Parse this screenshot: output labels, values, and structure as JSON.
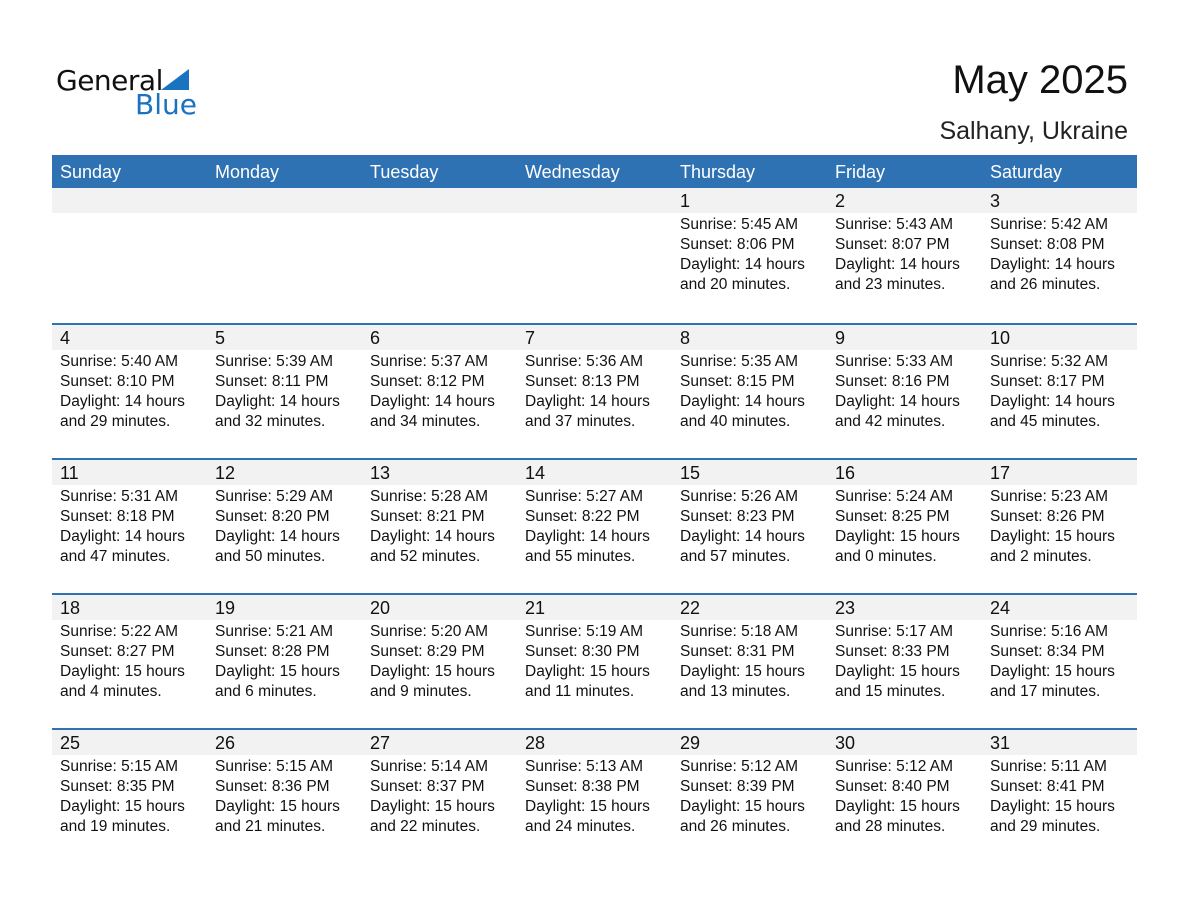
{
  "logo": {
    "line1": "General",
    "line2": "Blue"
  },
  "title": "May 2025",
  "location": "Salhany, Ukraine",
  "colors": {
    "header": "#2e72b3",
    "date_bar": "#f2f2f2",
    "logo_blue": "#1a73c0"
  },
  "days": [
    "Sunday",
    "Monday",
    "Tuesday",
    "Wednesday",
    "Thursday",
    "Friday",
    "Saturday"
  ],
  "weeks": [
    [
      null,
      null,
      null,
      null,
      {
        "day": "1",
        "sunrise": "Sunrise: 5:45 AM",
        "sunset": "Sunset: 8:06 PM",
        "daylight": "Daylight: 14 hours",
        "minutes": "and 20 minutes."
      },
      {
        "day": "2",
        "sunrise": "Sunrise: 5:43 AM",
        "sunset": "Sunset: 8:07 PM",
        "daylight": "Daylight: 14 hours",
        "minutes": "and 23 minutes."
      },
      {
        "day": "3",
        "sunrise": "Sunrise: 5:42 AM",
        "sunset": "Sunset: 8:08 PM",
        "daylight": "Daylight: 14 hours",
        "minutes": "and 26 minutes."
      }
    ],
    [
      {
        "day": "4",
        "sunrise": "Sunrise: 5:40 AM",
        "sunset": "Sunset: 8:10 PM",
        "daylight": "Daylight: 14 hours",
        "minutes": "and 29 minutes."
      },
      {
        "day": "5",
        "sunrise": "Sunrise: 5:39 AM",
        "sunset": "Sunset: 8:11 PM",
        "daylight": "Daylight: 14 hours",
        "minutes": "and 32 minutes."
      },
      {
        "day": "6",
        "sunrise": "Sunrise: 5:37 AM",
        "sunset": "Sunset: 8:12 PM",
        "daylight": "Daylight: 14 hours",
        "minutes": "and 34 minutes."
      },
      {
        "day": "7",
        "sunrise": "Sunrise: 5:36 AM",
        "sunset": "Sunset: 8:13 PM",
        "daylight": "Daylight: 14 hours",
        "minutes": "and 37 minutes."
      },
      {
        "day": "8",
        "sunrise": "Sunrise: 5:35 AM",
        "sunset": "Sunset: 8:15 PM",
        "daylight": "Daylight: 14 hours",
        "minutes": "and 40 minutes."
      },
      {
        "day": "9",
        "sunrise": "Sunrise: 5:33 AM",
        "sunset": "Sunset: 8:16 PM",
        "daylight": "Daylight: 14 hours",
        "minutes": "and 42 minutes."
      },
      {
        "day": "10",
        "sunrise": "Sunrise: 5:32 AM",
        "sunset": "Sunset: 8:17 PM",
        "daylight": "Daylight: 14 hours",
        "minutes": "and 45 minutes."
      }
    ],
    [
      {
        "day": "11",
        "sunrise": "Sunrise: 5:31 AM",
        "sunset": "Sunset: 8:18 PM",
        "daylight": "Daylight: 14 hours",
        "minutes": "and 47 minutes."
      },
      {
        "day": "12",
        "sunrise": "Sunrise: 5:29 AM",
        "sunset": "Sunset: 8:20 PM",
        "daylight": "Daylight: 14 hours",
        "minutes": "and 50 minutes."
      },
      {
        "day": "13",
        "sunrise": "Sunrise: 5:28 AM",
        "sunset": "Sunset: 8:21 PM",
        "daylight": "Daylight: 14 hours",
        "minutes": "and 52 minutes."
      },
      {
        "day": "14",
        "sunrise": "Sunrise: 5:27 AM",
        "sunset": "Sunset: 8:22 PM",
        "daylight": "Daylight: 14 hours",
        "minutes": "and 55 minutes."
      },
      {
        "day": "15",
        "sunrise": "Sunrise: 5:26 AM",
        "sunset": "Sunset: 8:23 PM",
        "daylight": "Daylight: 14 hours",
        "minutes": "and 57 minutes."
      },
      {
        "day": "16",
        "sunrise": "Sunrise: 5:24 AM",
        "sunset": "Sunset: 8:25 PM",
        "daylight": "Daylight: 15 hours",
        "minutes": "and 0 minutes."
      },
      {
        "day": "17",
        "sunrise": "Sunrise: 5:23 AM",
        "sunset": "Sunset: 8:26 PM",
        "daylight": "Daylight: 15 hours",
        "minutes": "and 2 minutes."
      }
    ],
    [
      {
        "day": "18",
        "sunrise": "Sunrise: 5:22 AM",
        "sunset": "Sunset: 8:27 PM",
        "daylight": "Daylight: 15 hours",
        "minutes": "and 4 minutes."
      },
      {
        "day": "19",
        "sunrise": "Sunrise: 5:21 AM",
        "sunset": "Sunset: 8:28 PM",
        "daylight": "Daylight: 15 hours",
        "minutes": "and 6 minutes."
      },
      {
        "day": "20",
        "sunrise": "Sunrise: 5:20 AM",
        "sunset": "Sunset: 8:29 PM",
        "daylight": "Daylight: 15 hours",
        "minutes": "and 9 minutes."
      },
      {
        "day": "21",
        "sunrise": "Sunrise: 5:19 AM",
        "sunset": "Sunset: 8:30 PM",
        "daylight": "Daylight: 15 hours",
        "minutes": "and 11 minutes."
      },
      {
        "day": "22",
        "sunrise": "Sunrise: 5:18 AM",
        "sunset": "Sunset: 8:31 PM",
        "daylight": "Daylight: 15 hours",
        "minutes": "and 13 minutes."
      },
      {
        "day": "23",
        "sunrise": "Sunrise: 5:17 AM",
        "sunset": "Sunset: 8:33 PM",
        "daylight": "Daylight: 15 hours",
        "minutes": "and 15 minutes."
      },
      {
        "day": "24",
        "sunrise": "Sunrise: 5:16 AM",
        "sunset": "Sunset: 8:34 PM",
        "daylight": "Daylight: 15 hours",
        "minutes": "and 17 minutes."
      }
    ],
    [
      {
        "day": "25",
        "sunrise": "Sunrise: 5:15 AM",
        "sunset": "Sunset: 8:35 PM",
        "daylight": "Daylight: 15 hours",
        "minutes": "and 19 minutes."
      },
      {
        "day": "26",
        "sunrise": "Sunrise: 5:15 AM",
        "sunset": "Sunset: 8:36 PM",
        "daylight": "Daylight: 15 hours",
        "minutes": "and 21 minutes."
      },
      {
        "day": "27",
        "sunrise": "Sunrise: 5:14 AM",
        "sunset": "Sunset: 8:37 PM",
        "daylight": "Daylight: 15 hours",
        "minutes": "and 22 minutes."
      },
      {
        "day": "28",
        "sunrise": "Sunrise: 5:13 AM",
        "sunset": "Sunset: 8:38 PM",
        "daylight": "Daylight: 15 hours",
        "minutes": "and 24 minutes."
      },
      {
        "day": "29",
        "sunrise": "Sunrise: 5:12 AM",
        "sunset": "Sunset: 8:39 PM",
        "daylight": "Daylight: 15 hours",
        "minutes": "and 26 minutes."
      },
      {
        "day": "30",
        "sunrise": "Sunrise: 5:12 AM",
        "sunset": "Sunset: 8:40 PM",
        "daylight": "Daylight: 15 hours",
        "minutes": "and 28 minutes."
      },
      {
        "day": "31",
        "sunrise": "Sunrise: 5:11 AM",
        "sunset": "Sunset: 8:41 PM",
        "daylight": "Daylight: 15 hours",
        "minutes": "and 29 minutes."
      }
    ]
  ]
}
